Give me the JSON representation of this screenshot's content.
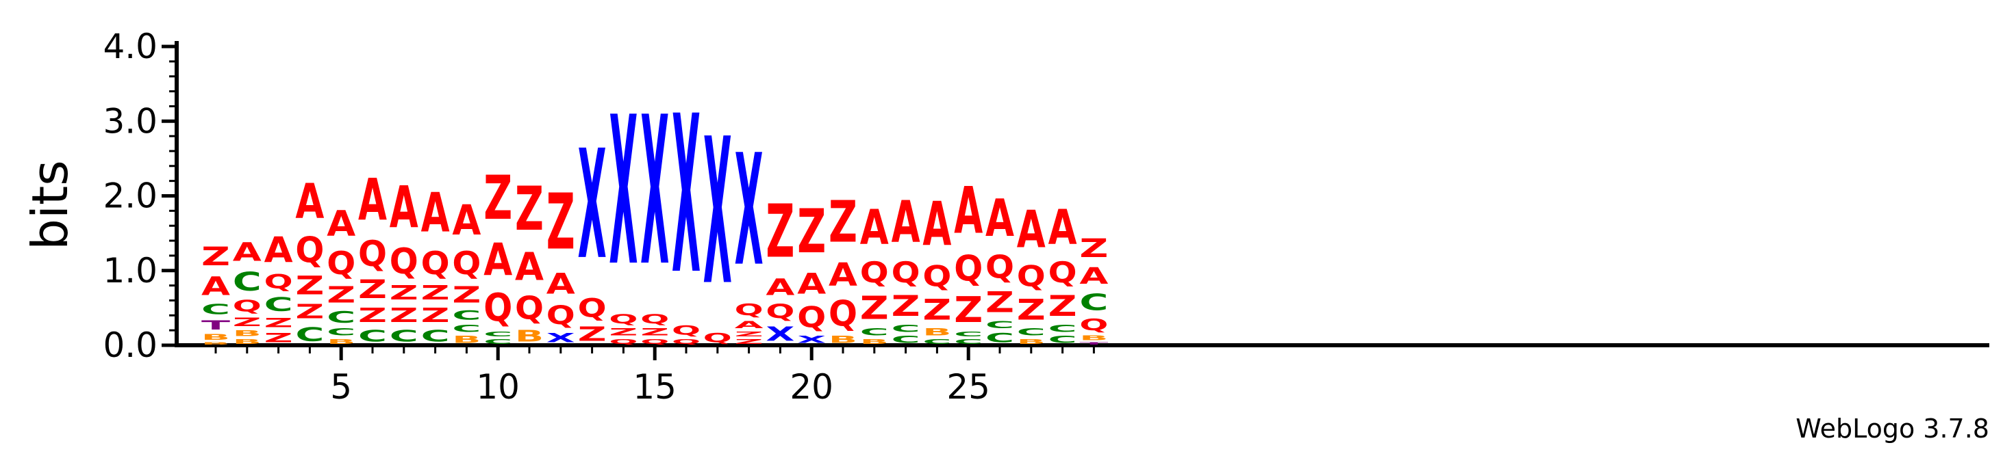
{
  "chart_data": {
    "type": "sequence-logo",
    "ylabel": "bits",
    "ylim": [
      0,
      4.0
    ],
    "yticks": [
      "0.0",
      "1.0",
      "2.0",
      "3.0",
      "4.0"
    ],
    "xlim": [
      1,
      29
    ],
    "xticks": [
      "5",
      "10",
      "15",
      "20",
      "25"
    ],
    "credit": "WebLogo 3.7.8",
    "colors": {
      "A": "#ff0000",
      "Q": "#ff0000",
      "Z": "#ff0000",
      "X": "#0000ff",
      "C": "#008000",
      "B": "#ff8c00",
      "T": "#800080"
    },
    "positions": [
      {
        "pos": 1,
        "stack": [
          [
            "B",
            0.05
          ],
          [
            "B",
            0.12
          ],
          [
            "T",
            0.2
          ],
          [
            "C",
            0.22
          ],
          [
            "A",
            0.4
          ],
          [
            "Z",
            0.4
          ]
        ]
      },
      {
        "pos": 2,
        "stack": [
          [
            "B",
            0.1
          ],
          [
            "B",
            0.12
          ],
          [
            "Z",
            0.18
          ],
          [
            "Q",
            0.25
          ],
          [
            "C",
            0.4
          ],
          [
            "A",
            0.4
          ]
        ]
      },
      {
        "pos": 3,
        "stack": [
          [
            "Z",
            0.2
          ],
          [
            "Z",
            0.2
          ],
          [
            "C",
            0.3
          ],
          [
            "Q",
            0.3
          ],
          [
            "A",
            0.55
          ]
        ]
      },
      {
        "pos": 4,
        "stack": [
          [
            "C",
            0.3
          ],
          [
            "Z",
            0.3
          ],
          [
            "Z",
            0.4
          ],
          [
            "Q",
            0.55
          ],
          [
            "A",
            0.75
          ]
        ]
      },
      {
        "pos": 5,
        "stack": [
          [
            "B",
            0.1
          ],
          [
            "C",
            0.15
          ],
          [
            "C",
            0.25
          ],
          [
            "Z",
            0.35
          ],
          [
            "Q",
            0.5
          ],
          [
            "A",
            0.55
          ]
        ]
      },
      {
        "pos": 6,
        "stack": [
          [
            "C",
            0.25
          ],
          [
            "Z",
            0.3
          ],
          [
            "Z",
            0.4
          ],
          [
            "Q",
            0.55
          ],
          [
            "A",
            0.9
          ]
        ]
      },
      {
        "pos": 7,
        "stack": [
          [
            "C",
            0.25
          ],
          [
            "Z",
            0.3
          ],
          [
            "Z",
            0.3
          ],
          [
            "Q",
            0.55
          ],
          [
            "A",
            0.9
          ]
        ]
      },
      {
        "pos": 8,
        "stack": [
          [
            "C",
            0.25
          ],
          [
            "Z",
            0.3
          ],
          [
            "Z",
            0.3
          ],
          [
            "Q",
            0.5
          ],
          [
            "A",
            0.85
          ]
        ]
      },
      {
        "pos": 9,
        "stack": [
          [
            "B",
            0.15
          ],
          [
            "C",
            0.15
          ],
          [
            "C",
            0.2
          ],
          [
            "Z",
            0.35
          ],
          [
            "Q",
            0.5
          ],
          [
            "A",
            0.65
          ]
        ]
      },
      {
        "pos": 10,
        "stack": [
          [
            "C",
            0.1
          ],
          [
            "C",
            0.1
          ],
          [
            "Q",
            0.6
          ],
          [
            "A",
            0.7
          ],
          [
            "Z",
            0.95
          ]
        ]
      },
      {
        "pos": 11,
        "stack": [
          [
            "B",
            0.25
          ],
          [
            "Q",
            0.5
          ],
          [
            "A",
            0.6
          ],
          [
            "Z",
            0.95
          ]
        ]
      },
      {
        "pos": 12,
        "stack": [
          [
            "X",
            0.2
          ],
          [
            "Q",
            0.4
          ],
          [
            "A",
            0.45
          ],
          [
            "Z",
            1.2
          ]
        ]
      },
      {
        "pos": 13,
        "stack": [
          [
            "Z",
            0.3
          ],
          [
            "Q",
            0.4
          ],
          [
            "X",
            2.35
          ]
        ]
      },
      {
        "pos": 14,
        "stack": [
          [
            "Q",
            0.1
          ],
          [
            "Z",
            0.15
          ],
          [
            "Q",
            0.2
          ],
          [
            "X",
            3.2
          ]
        ]
      },
      {
        "pos": 15,
        "stack": [
          [
            "Q",
            0.1
          ],
          [
            "Z",
            0.15
          ],
          [
            "Q",
            0.2
          ],
          [
            "X",
            3.2
          ]
        ]
      },
      {
        "pos": 16,
        "stack": [
          [
            "Q",
            0.1
          ],
          [
            "Q",
            0.2
          ],
          [
            "X",
            3.4
          ]
        ]
      },
      {
        "pos": 17,
        "stack": [
          [
            "Q",
            0.2
          ],
          [
            "X",
            3.15
          ]
        ]
      },
      {
        "pos": 18,
        "stack": [
          [
            "Z",
            0.1
          ],
          [
            "Z",
            0.1
          ],
          [
            "A",
            0.15
          ],
          [
            "Q",
            0.25
          ],
          [
            "X",
            2.4
          ]
        ]
      },
      {
        "pos": 19,
        "stack": [
          [
            "X",
            0.3
          ],
          [
            "Q",
            0.3
          ],
          [
            "A",
            0.35
          ],
          [
            "Z",
            1.15
          ]
        ]
      },
      {
        "pos": 20,
        "stack": [
          [
            "X",
            0.15
          ],
          [
            "Q",
            0.45
          ],
          [
            "A",
            0.45
          ],
          [
            "Z",
            0.95
          ]
        ]
      },
      {
        "pos": 21,
        "stack": [
          [
            "B",
            0.15
          ],
          [
            "Q",
            0.55
          ],
          [
            "A",
            0.5
          ],
          [
            "Z",
            0.9
          ]
        ]
      },
      {
        "pos": 22,
        "stack": [
          [
            "B",
            0.1
          ],
          [
            "C",
            0.15
          ],
          [
            "Z",
            0.5
          ],
          [
            "Q",
            0.45
          ],
          [
            "A",
            0.75
          ]
        ]
      },
      {
        "pos": 23,
        "stack": [
          [
            "C",
            0.15
          ],
          [
            "C",
            0.15
          ],
          [
            "Z",
            0.45
          ],
          [
            "Q",
            0.45
          ],
          [
            "A",
            0.9
          ]
        ]
      },
      {
        "pos": 24,
        "stack": [
          [
            "C",
            0.1
          ],
          [
            "B",
            0.15
          ],
          [
            "Z",
            0.45
          ],
          [
            "Q",
            0.45
          ],
          [
            "A",
            0.95
          ]
        ]
      },
      {
        "pos": 25,
        "stack": [
          [
            "C",
            0.1
          ],
          [
            "C",
            0.1
          ],
          [
            "Z",
            0.55
          ],
          [
            "Q",
            0.55
          ],
          [
            "A",
            1.0
          ]
        ]
      },
      {
        "pos": 26,
        "stack": [
          [
            "C",
            0.2
          ],
          [
            "C",
            0.15
          ],
          [
            "Z",
            0.45
          ],
          [
            "Q",
            0.5
          ],
          [
            "A",
            0.8
          ]
        ]
      },
      {
        "pos": 27,
        "stack": [
          [
            "B",
            0.1
          ],
          [
            "C",
            0.15
          ],
          [
            "Z",
            0.45
          ],
          [
            "Q",
            0.45
          ],
          [
            "A",
            0.8
          ]
        ]
      },
      {
        "pos": 28,
        "stack": [
          [
            "C",
            0.15
          ],
          [
            "C",
            0.15
          ],
          [
            "Z",
            0.45
          ],
          [
            "Q",
            0.45
          ],
          [
            "A",
            0.75
          ]
        ]
      },
      {
        "pos": 29,
        "stack": [
          [
            "T",
            0.05
          ],
          [
            "B",
            0.1
          ],
          [
            "Q",
            0.25
          ],
          [
            "C",
            0.35
          ],
          [
            "A",
            0.35
          ],
          [
            "Z",
            0.4
          ]
        ]
      }
    ]
  }
}
